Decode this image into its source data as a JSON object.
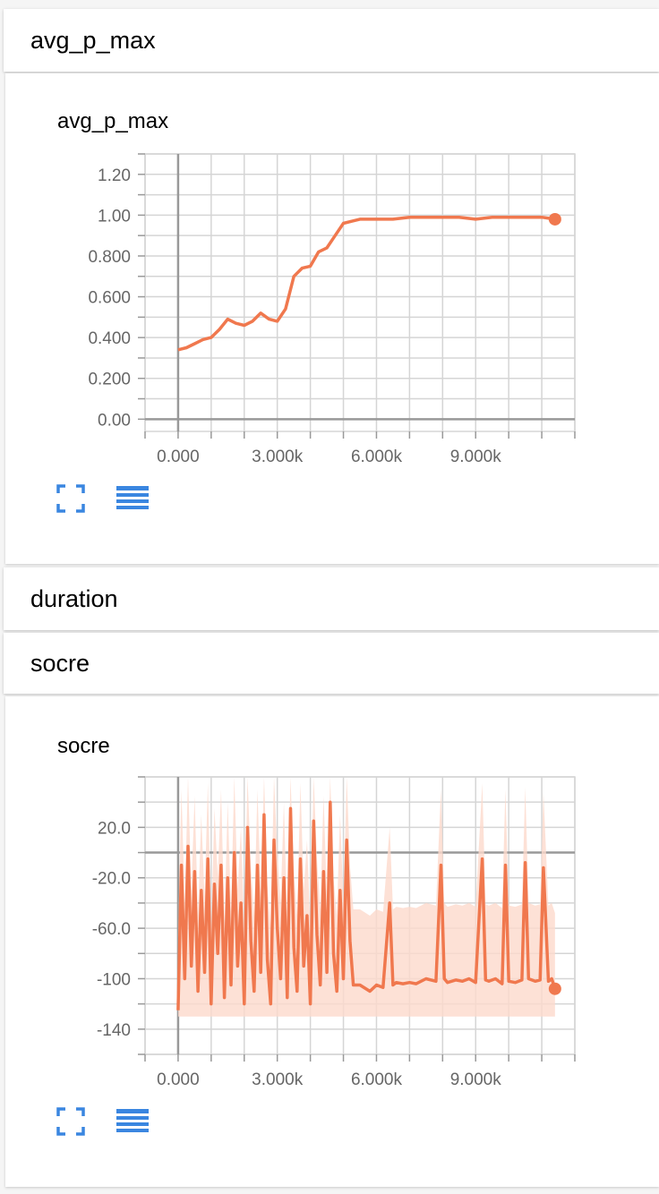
{
  "sections": [
    {
      "label": "avg_p_max"
    },
    {
      "label": "duration"
    },
    {
      "label": "socre"
    }
  ],
  "colors": {
    "line": "#f0784e",
    "band": "#fcd9cc",
    "grid": "#d5d5d5",
    "axis": "#999999",
    "icon": "#3a86e0"
  },
  "icons": {
    "expand": "fullscreen-icon",
    "data": "list-lines-icon"
  },
  "chart_data": [
    {
      "type": "line",
      "title": "avg_p_max",
      "xlabel": "",
      "ylabel": "",
      "xlim": [
        -1000,
        12000
      ],
      "ylim": [
        -0.06,
        1.3
      ],
      "grid": true,
      "x_ticks": [
        0,
        3000,
        6000,
        9000
      ],
      "x_tick_labels": [
        "0.000",
        "3.000k",
        "6.000k",
        "9.000k"
      ],
      "y_ticks": [
        0,
        0.2,
        0.4,
        0.6,
        0.8,
        1.0,
        1.2
      ],
      "y_tick_labels": [
        "0.00",
        "0.200",
        "0.400",
        "0.600",
        "0.800",
        "1.00",
        "1.20"
      ],
      "series": [
        {
          "x": [
            0,
            250,
            500,
            750,
            1000,
            1250,
            1500,
            1750,
            2000,
            2250,
            2500,
            2750,
            3000,
            3250,
            3500,
            3750,
            4000,
            4250,
            4500,
            4750,
            5000,
            5250,
            5500,
            6000,
            6500,
            7000,
            7500,
            8000,
            8500,
            9000,
            9500,
            10000,
            10500,
            11000,
            11400
          ],
          "y": [
            0.34,
            0.35,
            0.37,
            0.39,
            0.4,
            0.44,
            0.49,
            0.47,
            0.46,
            0.48,
            0.52,
            0.49,
            0.48,
            0.54,
            0.7,
            0.74,
            0.75,
            0.82,
            0.84,
            0.9,
            0.96,
            0.97,
            0.98,
            0.98,
            0.98,
            0.99,
            0.99,
            0.99,
            0.99,
            0.98,
            0.99,
            0.99,
            0.99,
            0.99,
            0.98
          ]
        }
      ]
    },
    {
      "type": "line",
      "title": "socre",
      "xlabel": "",
      "ylabel": "",
      "xlim": [
        -1000,
        12000
      ],
      "ylim": [
        -160,
        60
      ],
      "grid": true,
      "x_ticks": [
        0,
        3000,
        6000,
        9000
      ],
      "x_tick_labels": [
        "0.000",
        "3.000k",
        "6.000k",
        "9.000k"
      ],
      "y_ticks": [
        -140,
        -100,
        -60,
        -20,
        20
      ],
      "y_tick_labels": [
        "-140",
        "-100",
        "-60.0",
        "-20.0",
        "20.0"
      ],
      "series": [
        {
          "x": [
            0,
            100,
            200,
            300,
            400,
            500,
            600,
            700,
            800,
            900,
            1000,
            1100,
            1200,
            1300,
            1400,
            1500,
            1600,
            1700,
            1800,
            1900,
            2000,
            2100,
            2200,
            2300,
            2400,
            2500,
            2600,
            2700,
            2800,
            2900,
            3000,
            3100,
            3200,
            3300,
            3400,
            3500,
            3600,
            3700,
            3800,
            3900,
            4000,
            4100,
            4200,
            4300,
            4400,
            4500,
            4600,
            4700,
            4800,
            4900,
            5000,
            5100,
            5200,
            5300,
            5500,
            5800,
            6000,
            6200,
            6400,
            6500,
            6600,
            6800,
            7000,
            7200,
            7500,
            7800,
            7950,
            8050,
            8150,
            8400,
            8600,
            8800,
            9000,
            9200,
            9300,
            9400,
            9600,
            9800,
            9900,
            10000,
            10200,
            10400,
            10500,
            10600,
            10800,
            10950,
            11050,
            11200,
            11300,
            11400
          ],
          "y": [
            -125,
            -10,
            -100,
            5,
            -90,
            -15,
            -110,
            -30,
            -95,
            -5,
            -120,
            -25,
            -80,
            -10,
            -115,
            -20,
            -105,
            0,
            -90,
            -40,
            -120,
            20,
            -70,
            -110,
            -10,
            -95,
            30,
            -85,
            -120,
            10,
            -60,
            -100,
            -20,
            -115,
            35,
            -75,
            -110,
            -5,
            -90,
            -50,
            -120,
            25,
            -65,
            -105,
            -15,
            -95,
            40,
            -80,
            -110,
            -30,
            -100,
            10,
            -70,
            -105,
            -105,
            -110,
            -105,
            -107,
            -40,
            -105,
            -103,
            -104,
            -103,
            -104,
            -100,
            -102,
            -10,
            -100,
            -103,
            -101,
            -102,
            -100,
            -103,
            -5,
            -101,
            -102,
            -100,
            -104,
            -10,
            -102,
            -103,
            -101,
            -8,
            -100,
            -102,
            -101,
            -12,
            -102,
            -100,
            -108
          ]
        }
      ]
    }
  ]
}
